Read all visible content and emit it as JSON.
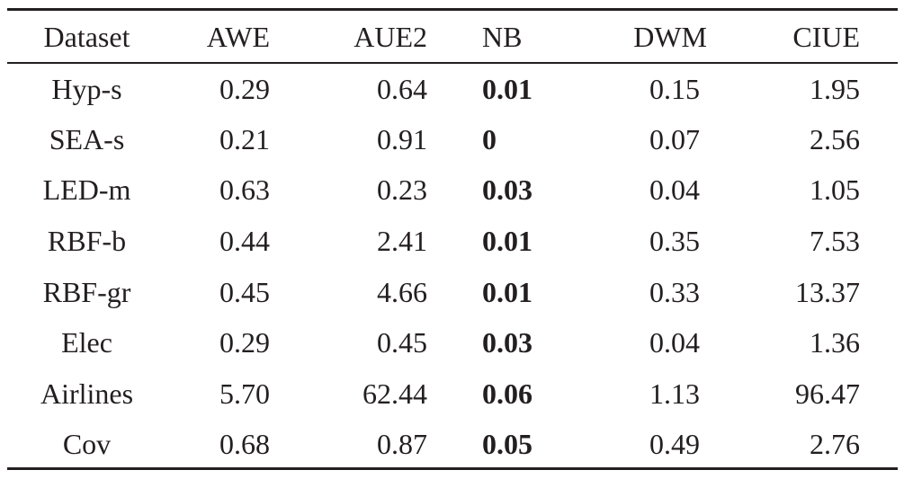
{
  "table": {
    "headers": [
      "Dataset",
      "AWE",
      "AUE2",
      "NB",
      "DWM",
      "CIUE"
    ],
    "rows": [
      {
        "dataset": "Hyp-s",
        "awe": "0.29",
        "aue2": "0.64",
        "nb": "0.01",
        "dwm": "0.15",
        "ciue": "1.95"
      },
      {
        "dataset": "SEA-s",
        "awe": "0.21",
        "aue2": "0.91",
        "nb": "0",
        "dwm": "0.07",
        "ciue": "2.56"
      },
      {
        "dataset": "LED-m",
        "awe": "0.63",
        "aue2": "0.23",
        "nb": "0.03",
        "dwm": "0.04",
        "ciue": "1.05"
      },
      {
        "dataset": "RBF-b",
        "awe": "0.44",
        "aue2": "2.41",
        "nb": "0.01",
        "dwm": "0.35",
        "ciue": "7.53"
      },
      {
        "dataset": "RBF-gr",
        "awe": "0.45",
        "aue2": "4.66",
        "nb": "0.01",
        "dwm": "0.33",
        "ciue": "13.37"
      },
      {
        "dataset": "Elec",
        "awe": "0.29",
        "aue2": "0.45",
        "nb": "0.03",
        "dwm": "0.04",
        "ciue": "1.36"
      },
      {
        "dataset": "Airlines",
        "awe": "5.70",
        "aue2": "62.44",
        "nb": "0.06",
        "dwm": "1.13",
        "ciue": "96.47"
      },
      {
        "dataset": "Cov",
        "awe": "0.68",
        "aue2": "0.87",
        "nb": "0.05",
        "dwm": "0.49",
        "ciue": "2.76"
      }
    ]
  }
}
